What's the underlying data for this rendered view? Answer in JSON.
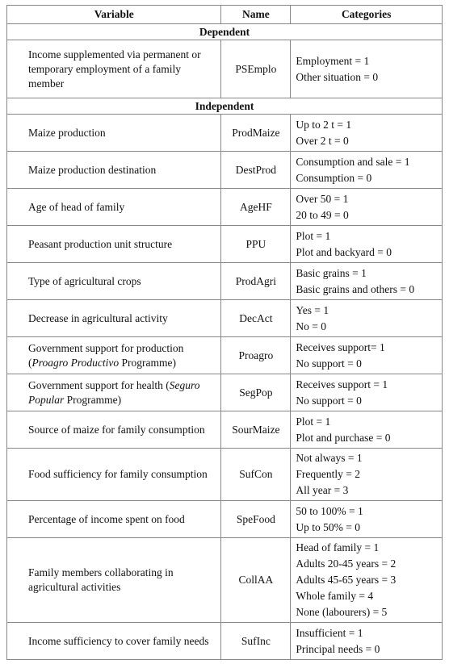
{
  "header": [
    "Variable",
    "Name",
    "Categories"
  ],
  "sections": [
    {
      "title": "Dependent",
      "rows": [
        {
          "variable": [
            {
              "text": "Income supplemented via permanent or temporary employment of a family member"
            }
          ],
          "name": "PSEmplo",
          "categories": [
            "Employment = 1",
            "Other situation = 0"
          ]
        }
      ]
    },
    {
      "title": "Independent",
      "rows": [
        {
          "variable": [
            {
              "text": "Maize production"
            }
          ],
          "name": "ProdMaize",
          "categories": [
            "Up to 2 t = 1",
            "Over 2 t = 0"
          ]
        },
        {
          "variable": [
            {
              "text": "Maize production destination"
            }
          ],
          "name": "DestProd",
          "categories": [
            "Consumption and sale = 1",
            "Consumption = 0"
          ]
        },
        {
          "variable": [
            {
              "text": "Age of head of family"
            }
          ],
          "name": "AgeHF",
          "categories": [
            "Over 50 = 1",
            "20 to 49 = 0"
          ]
        },
        {
          "variable": [
            {
              "text": "Peasant production unit structure"
            }
          ],
          "name": "PPU",
          "categories": [
            "Plot = 1",
            "Plot and backyard = 0"
          ]
        },
        {
          "variable": [
            {
              "text": "Type of agricultural crops"
            }
          ],
          "name": "ProdAgri",
          "categories": [
            "Basic grains = 1",
            "Basic grains and others = 0"
          ]
        },
        {
          "variable": [
            {
              "text": "Decrease in agricultural activity"
            }
          ],
          "name": "DecAct",
          "categories": [
            "Yes = 1",
            "No = 0"
          ]
        },
        {
          "variable": [
            {
              "text": "Government support for production ("
            },
            {
              "text": "Proagro Productivo",
              "italic": true
            },
            {
              "text": " Programme)"
            }
          ],
          "name": "Proagro",
          "categories": [
            "Receives support= 1",
            "No support = 0"
          ]
        },
        {
          "variable": [
            {
              "text": "Government support for health ("
            },
            {
              "text": "Seguro Popular",
              "italic": true
            },
            {
              "text": " Programme)"
            }
          ],
          "name": "SegPop",
          "categories": [
            "Receives support = 1",
            "No support = 0"
          ]
        },
        {
          "variable": [
            {
              "text": "Source of maize for family consumption"
            }
          ],
          "name": "SourMaize",
          "categories": [
            "Plot = 1",
            "Plot and purchase = 0"
          ]
        },
        {
          "variable": [
            {
              "text": "Food sufficiency for family consumption"
            }
          ],
          "name": "SufCon",
          "categories": [
            "Not always = 1",
            "Frequently = 2",
            "All year = 3"
          ]
        },
        {
          "variable": [
            {
              "text": "Percentage of income spent on food"
            }
          ],
          "name": "SpeFood",
          "categories": [
            "50 to 100% = 1",
            "Up to 50% = 0"
          ]
        },
        {
          "variable": [
            {
              "text": "Family members collaborating in agricultural activities"
            }
          ],
          "name": "CollAA",
          "categories": [
            "Head of family = 1",
            "Adults 20-45 years = 2",
            "Adults 45-65 years = 3",
            "Whole family = 4",
            "None (labourers) = 5"
          ]
        },
        {
          "variable": [
            {
              "text": "Income sufficiency to cover family needs"
            }
          ],
          "name": "SufInc",
          "categories": [
            "Insufficient = 1",
            "Principal needs = 0"
          ]
        }
      ]
    }
  ]
}
